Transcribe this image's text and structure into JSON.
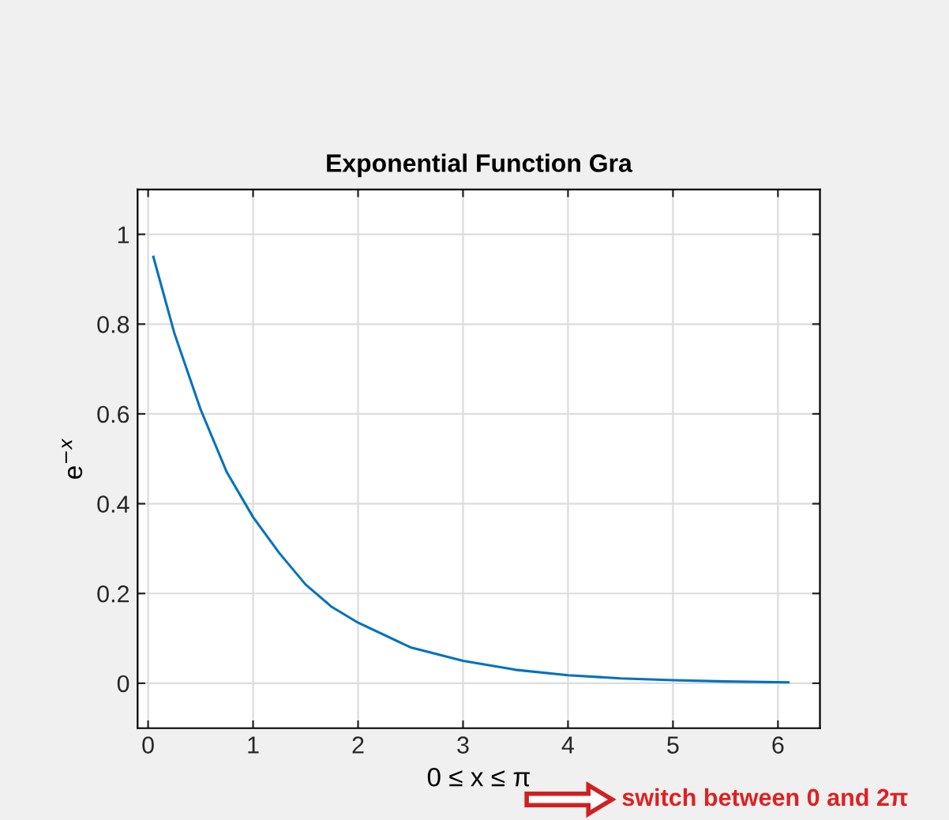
{
  "chart_data": {
    "type": "line",
    "title": "Exponential Function Gra",
    "xlabel": "0 ≤ x ≤ π",
    "ylabel": "e$^{−x}$",
    "annotations": [
      "switch between 0 and 2π"
    ],
    "series": [
      {
        "color": "#0072bd",
        "x": [
          0.05,
          0.25,
          0.5,
          0.75,
          1,
          1.25,
          1.5,
          1.75,
          2,
          2.5,
          3,
          3.5,
          4,
          4.5,
          5,
          5.5,
          6.1
        ],
        "values": [
          0.95,
          0.78,
          0.61,
          0.47,
          0.37,
          0.29,
          0.22,
          0.17,
          0.135,
          0.08,
          0.05,
          0.03,
          0.018,
          0.011,
          0.007,
          0.004,
          0.002
        ]
      }
    ],
    "xlim": [
      -0.1,
      6.4
    ],
    "ylim": [
      -0.1,
      1.1
    ],
    "xticks": [
      0,
      1,
      2,
      3,
      4,
      5,
      6
    ],
    "yticks": [
      0,
      0.2,
      0.4,
      0.6,
      0.8,
      1
    ],
    "grid": true,
    "legend": false,
    "line_style": "solid",
    "marker": "none"
  }
}
